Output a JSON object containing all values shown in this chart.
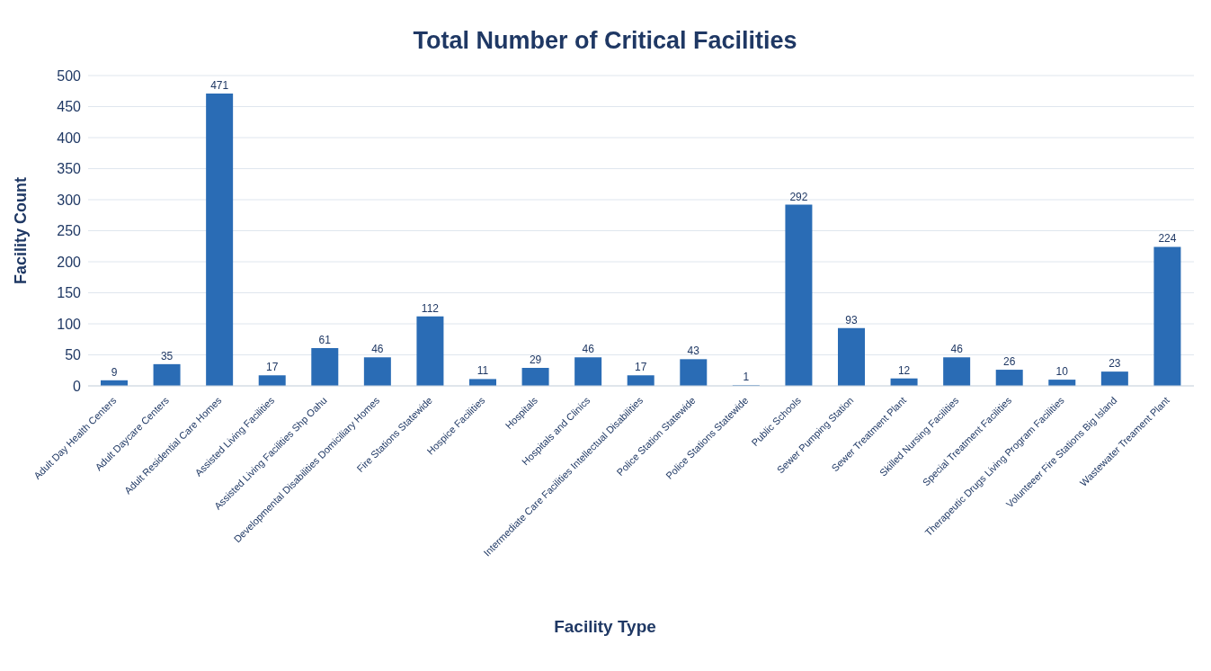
{
  "chart_data": {
    "type": "bar",
    "title": "Total Number of Critical Facilities",
    "xlabel": "Facility Type",
    "ylabel": "Facility Count",
    "categories": [
      "Adult Day Health Centers",
      "Adult Daycare Centers",
      "Adult Residential Care Homes",
      "Assisted Living Facilities",
      "Assisted Living Facilities Shp Oahu",
      "Developmental Disabilities Domiciliary Homes",
      "Fire Stations Statewide",
      "Hospice Facilities",
      "Hospitals",
      "Hospitals and Clinics",
      "Intermediate Care Facilities Intellectual Disabilities",
      "Police Station Statewide",
      "Police Stations Statewide",
      "Public Schools",
      "Sewer Pumping Station",
      "Sewer Treatment Plant",
      "Skilled Nursing Facilities",
      "Special Treatment Facilities",
      "Therapeutic Drugs Living Program Facilities",
      "Volunteeer Fire Stations Big Island",
      "Wastewater Treament Plant"
    ],
    "values": [
      9,
      35,
      471,
      17,
      61,
      46,
      112,
      11,
      29,
      46,
      17,
      43,
      1,
      292,
      93,
      12,
      46,
      26,
      10,
      23,
      224
    ],
    "color": "#2a6cb5",
    "ylim": [
      0,
      500
    ],
    "yticks": [
      0,
      50,
      100,
      150,
      200,
      250,
      300,
      350,
      400,
      450,
      500
    ],
    "grid": "y",
    "data_labels": true
  }
}
